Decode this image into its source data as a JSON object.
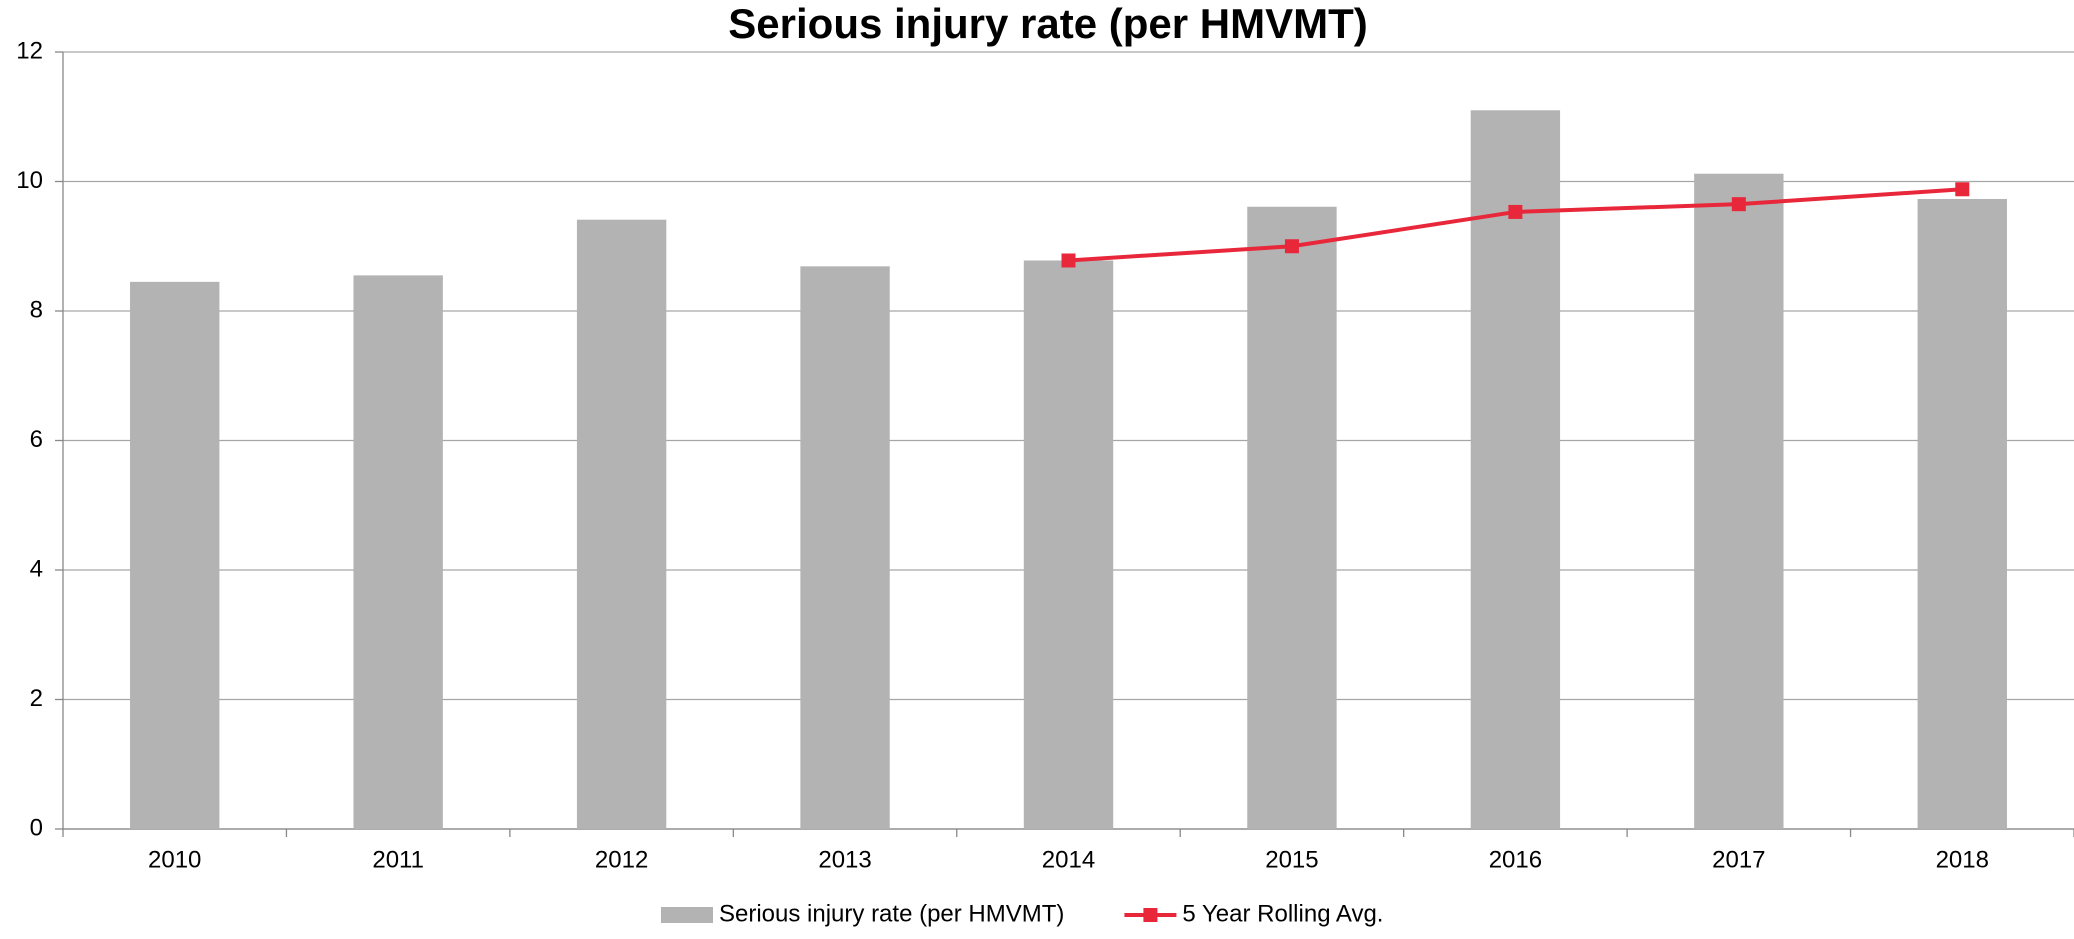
{
  "chart_data": {
    "type": "bar",
    "title": "Serious injury rate (per HMVMT)",
    "categories": [
      "2010",
      "2011",
      "2012",
      "2013",
      "2014",
      "2015",
      "2016",
      "2017",
      "2018"
    ],
    "series": [
      {
        "name": "Serious injury rate (per HMVMT)",
        "type": "bar",
        "color": "#b3b3b3",
        "values": [
          8.45,
          8.55,
          9.41,
          8.69,
          8.78,
          9.61,
          11.1,
          10.12,
          9.73
        ]
      },
      {
        "name": "5 Year Rolling Avg.",
        "type": "line",
        "color": "#e8283a",
        "values": [
          null,
          null,
          null,
          null,
          8.78,
          9.0,
          9.53,
          9.65,
          9.88
        ]
      }
    ],
    "ylim": [
      0,
      12
    ],
    "yticks": [
      0,
      2,
      4,
      6,
      8,
      10,
      12
    ],
    "grid": true,
    "legend": "bottom"
  }
}
